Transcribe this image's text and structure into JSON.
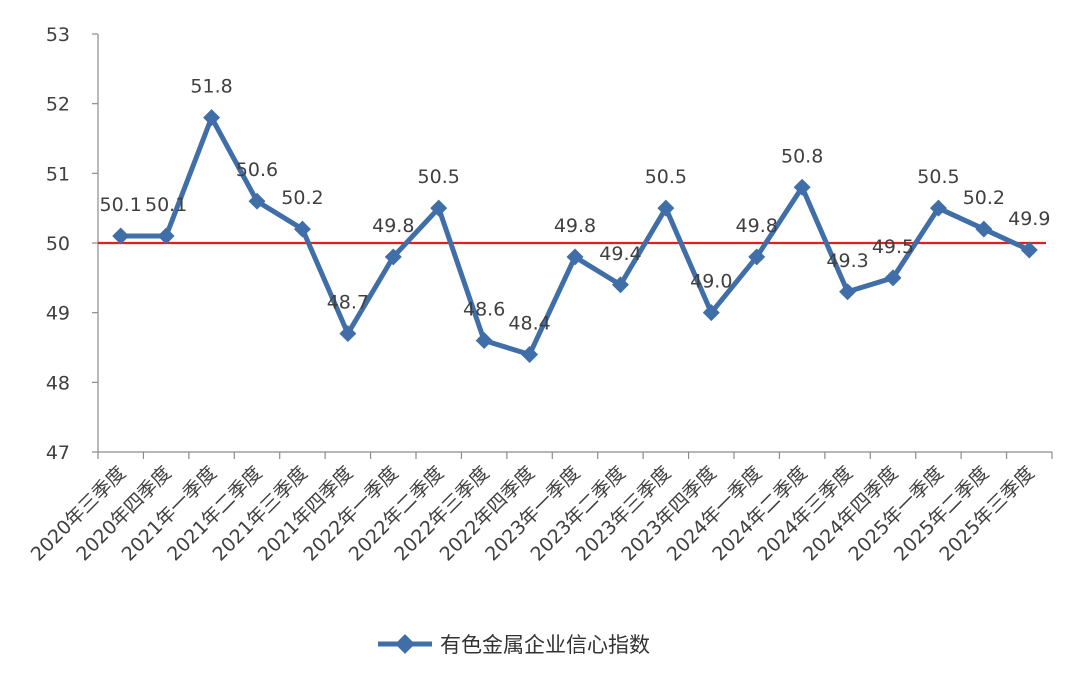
{
  "chart_data": {
    "type": "line",
    "categories": [
      "2020年三季度",
      "2020年四季度",
      "2021年一季度",
      "2021年二季度",
      "2021年三季度",
      "2021年四季度",
      "2022年一季度",
      "2022年二季度",
      "2022年三季度",
      "2022年四季度",
      "2023年一季度",
      "2023年二季度",
      "2023年三季度",
      "2023年四季度",
      "2024年一季度",
      "2024年二季度",
      "2024年三季度",
      "2024年四季度",
      "2025年一季度",
      "2025年二季度",
      "2025年三季度"
    ],
    "series": [
      {
        "name": "有色金属企业信心指数",
        "values": [
          50.1,
          50.1,
          51.8,
          50.6,
          50.2,
          48.7,
          49.8,
          50.5,
          48.6,
          48.4,
          49.8,
          49.4,
          50.5,
          49.0,
          49.8,
          50.8,
          49.3,
          49.5,
          50.5,
          50.2,
          49.9
        ],
        "labels": [
          "50.1",
          "50.1",
          "51.8",
          "50.6",
          "50.2",
          "48.7",
          "49.8",
          "50.5",
          "48.6",
          "48.4",
          "49.8",
          "49.4",
          "50.5",
          "49.0",
          "49.8",
          "50.8",
          "49.3",
          "49.5",
          "50.5",
          "50.2",
          "49.9"
        ],
        "color": "#3f6ea8"
      }
    ],
    "reference_line": {
      "value": 50,
      "color": "#e0201f"
    },
    "ylim": [
      47,
      53
    ],
    "yticks": [
      "47",
      "48",
      "49",
      "50",
      "51",
      "52",
      "53"
    ],
    "grid": false,
    "legend_position": "bottom-center",
    "title": "",
    "xlabel": "",
    "ylabel": ""
  }
}
